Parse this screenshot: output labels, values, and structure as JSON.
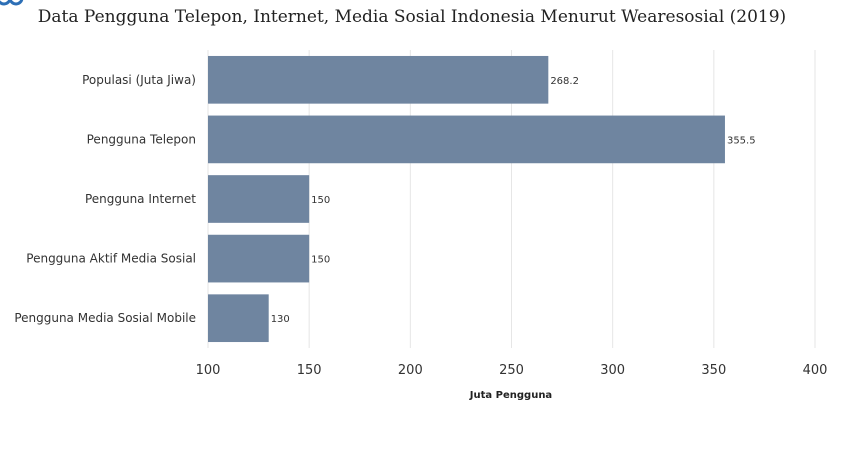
{
  "chart_data": {
    "type": "bar",
    "orientation": "horizontal",
    "title": "Data Pengguna Telepon, Internet, Media Sosial Indonesia Menurut Wearesosial (2019)",
    "categories": [
      "Populasi (Juta Jiwa)",
      "Pengguna Telepon",
      "Pengguna Internet",
      "Pengguna Aktif Media Sosial",
      "Pengguna Media Sosial Mobile"
    ],
    "values": [
      268.2,
      355.5,
      150,
      150,
      130
    ],
    "data_labels": [
      "268.2",
      "355.5",
      "150",
      "150",
      "130"
    ],
    "xlabel": "Juta Pengguna",
    "ylabel": "",
    "xlim": [
      100,
      400
    ],
    "xticks": [
      "100",
      "150",
      "200",
      "250",
      "300",
      "350",
      "400"
    ],
    "grid": "vertical",
    "bar_color": "#6f85a0"
  }
}
